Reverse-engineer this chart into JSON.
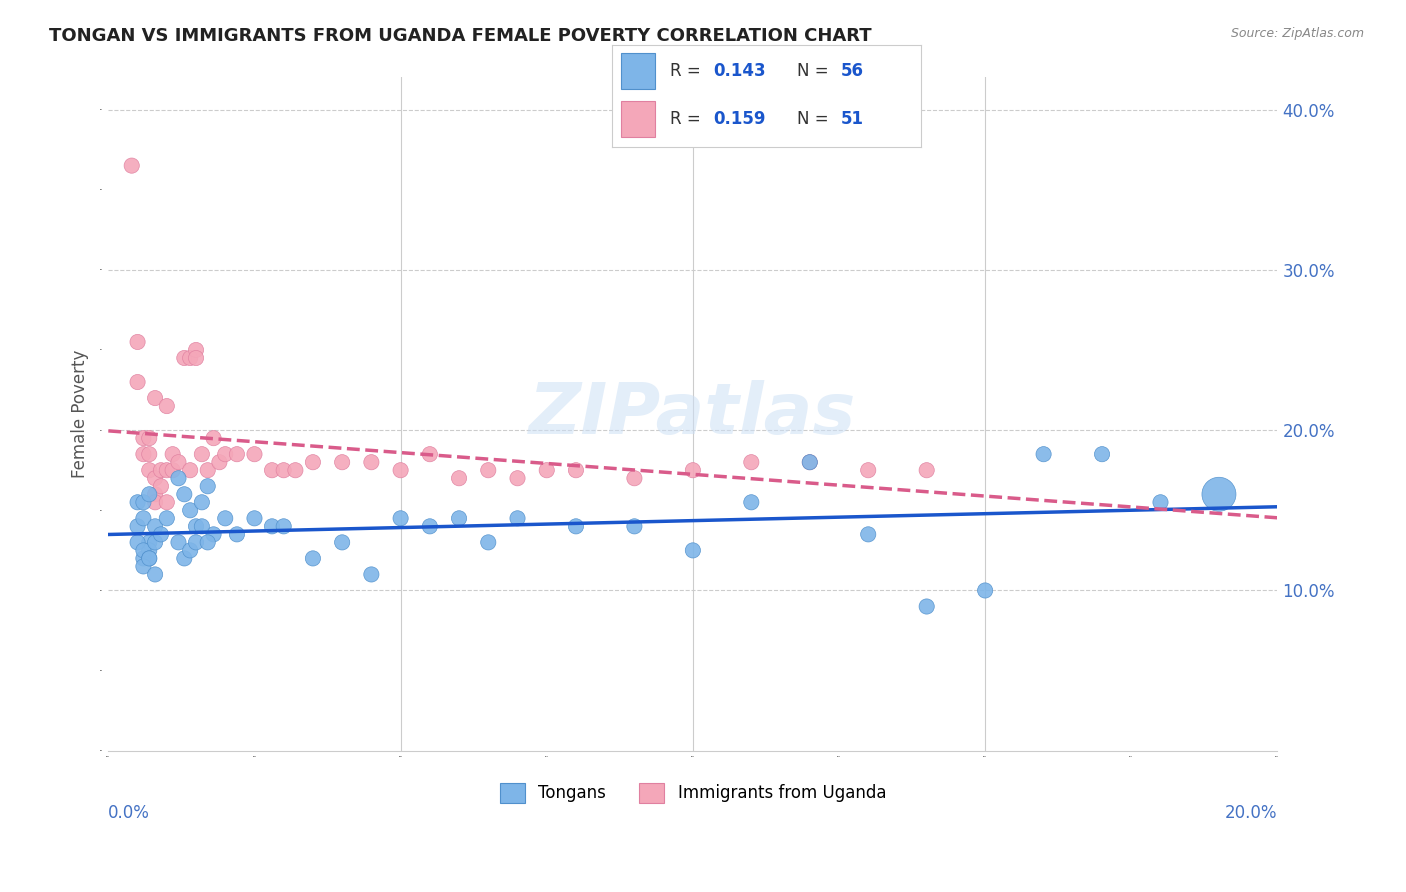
{
  "title": "TONGAN VS IMMIGRANTS FROM UGANDA FEMALE POVERTY CORRELATION CHART",
  "source": "Source: ZipAtlas.com",
  "ylabel": "Female Poverty",
  "yright_ticks": [
    "10.0%",
    "20.0%",
    "30.0%",
    "40.0%"
  ],
  "yright_values": [
    0.1,
    0.2,
    0.3,
    0.4
  ],
  "xlim": [
    0.0,
    0.2
  ],
  "ylim": [
    0.0,
    0.42
  ],
  "watermark": "ZIPatlas",
  "blue_color": "#7EB5E8",
  "pink_color": "#F4A7B9",
  "line_blue": "#1A56CC",
  "line_pink": "#D95B8A",
  "axis_label_color": "#4472C4",
  "tongans_x": [
    0.005,
    0.006,
    0.007,
    0.005,
    0.006,
    0.007,
    0.008,
    0.006,
    0.007,
    0.005,
    0.006,
    0.007,
    0.008,
    0.009,
    0.006,
    0.007,
    0.008,
    0.01,
    0.012,
    0.013,
    0.014,
    0.015,
    0.012,
    0.013,
    0.014,
    0.016,
    0.017,
    0.018,
    0.015,
    0.016,
    0.017,
    0.02,
    0.022,
    0.025,
    0.028,
    0.03,
    0.035,
    0.04,
    0.045,
    0.05,
    0.055,
    0.06,
    0.065,
    0.07,
    0.08,
    0.09,
    0.1,
    0.11,
    0.12,
    0.13,
    0.14,
    0.15,
    0.16,
    0.17,
    0.18,
    0.19
  ],
  "tongans_y": [
    0.155,
    0.155,
    0.16,
    0.14,
    0.145,
    0.13,
    0.14,
    0.12,
    0.125,
    0.13,
    0.125,
    0.12,
    0.13,
    0.135,
    0.115,
    0.12,
    0.11,
    0.145,
    0.17,
    0.16,
    0.15,
    0.14,
    0.13,
    0.12,
    0.125,
    0.155,
    0.165,
    0.135,
    0.13,
    0.14,
    0.13,
    0.145,
    0.135,
    0.145,
    0.14,
    0.14,
    0.12,
    0.13,
    0.11,
    0.145,
    0.14,
    0.145,
    0.13,
    0.145,
    0.14,
    0.14,
    0.125,
    0.155,
    0.18,
    0.135,
    0.09,
    0.1,
    0.185,
    0.185,
    0.155,
    0.16
  ],
  "tongans_size": [
    120,
    120,
    120,
    120,
    120,
    120,
    120,
    120,
    120,
    120,
    120,
    120,
    120,
    120,
    120,
    120,
    120,
    120,
    120,
    120,
    120,
    120,
    120,
    120,
    120,
    120,
    120,
    120,
    120,
    120,
    120,
    120,
    120,
    120,
    120,
    120,
    120,
    120,
    120,
    120,
    120,
    120,
    120,
    120,
    120,
    120,
    120,
    120,
    120,
    120,
    120,
    120,
    120,
    120,
    120,
    600
  ],
  "uganda_x": [
    0.004,
    0.005,
    0.005,
    0.006,
    0.006,
    0.007,
    0.007,
    0.007,
    0.008,
    0.008,
    0.008,
    0.008,
    0.009,
    0.009,
    0.01,
    0.01,
    0.01,
    0.011,
    0.011,
    0.012,
    0.013,
    0.014,
    0.014,
    0.015,
    0.015,
    0.016,
    0.017,
    0.018,
    0.019,
    0.02,
    0.022,
    0.025,
    0.028,
    0.03,
    0.032,
    0.035,
    0.04,
    0.045,
    0.05,
    0.055,
    0.06,
    0.065,
    0.07,
    0.075,
    0.08,
    0.09,
    0.1,
    0.11,
    0.12,
    0.13,
    0.14
  ],
  "uganda_y": [
    0.365,
    0.255,
    0.23,
    0.195,
    0.185,
    0.195,
    0.185,
    0.175,
    0.16,
    0.155,
    0.17,
    0.22,
    0.165,
    0.175,
    0.155,
    0.215,
    0.175,
    0.175,
    0.185,
    0.18,
    0.245,
    0.245,
    0.175,
    0.25,
    0.245,
    0.185,
    0.175,
    0.195,
    0.18,
    0.185,
    0.185,
    0.185,
    0.175,
    0.175,
    0.175,
    0.18,
    0.18,
    0.18,
    0.175,
    0.185,
    0.17,
    0.175,
    0.17,
    0.175,
    0.175,
    0.17,
    0.175,
    0.18,
    0.18,
    0.175,
    0.175
  ],
  "uganda_size": [
    120,
    120,
    120,
    120,
    120,
    120,
    120,
    120,
    120,
    120,
    120,
    120,
    120,
    120,
    120,
    120,
    120,
    120,
    120,
    120,
    120,
    120,
    120,
    120,
    120,
    120,
    120,
    120,
    120,
    120,
    120,
    120,
    120,
    120,
    120,
    120,
    120,
    120,
    120,
    120,
    120,
    120,
    120,
    120,
    120,
    120,
    120,
    120,
    120,
    120,
    120
  ]
}
